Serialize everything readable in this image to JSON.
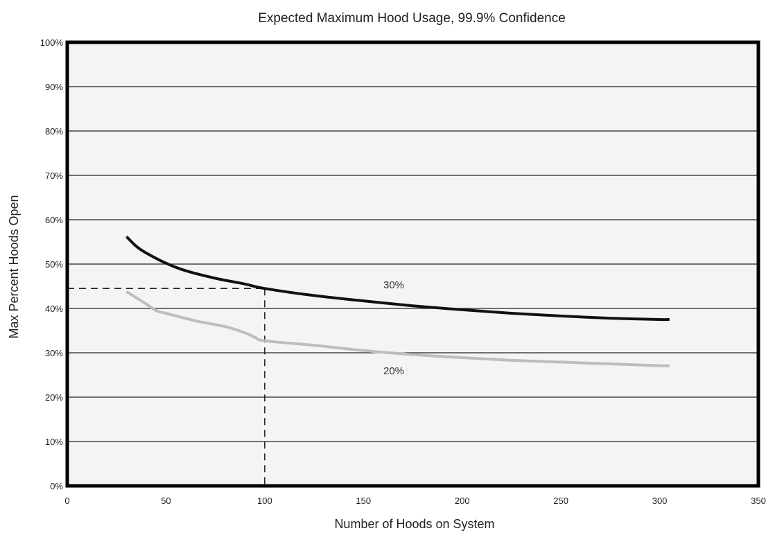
{
  "chart_data": {
    "type": "line",
    "title": "Expected Maximum Hood Usage, 99.9% Confidence",
    "xlabel": "Number of Hoods on System",
    "ylabel": "Max Percent Hoods Open",
    "xlim": [
      0,
      350
    ],
    "ylim": [
      0,
      100
    ],
    "x_ticks": [
      "0",
      "50",
      "100",
      "150",
      "200",
      "250",
      "300",
      "350"
    ],
    "y_ticks": [
      "0%",
      "10%",
      "20%",
      "30%",
      "40%",
      "50%",
      "60%",
      "70%",
      "80%",
      "90%",
      "100%"
    ],
    "grid": "horizontal",
    "series": [
      {
        "name": "30%",
        "color": "#111111",
        "x": [
          30,
          35,
          40,
          50,
          60,
          75,
          90,
          100,
          125,
          150,
          175,
          200,
          225,
          250,
          275,
          300,
          305
        ],
        "y": [
          56.2,
          54.0,
          52.5,
          50.2,
          48.5,
          46.8,
          45.5,
          44.5,
          42.9,
          41.7,
          40.6,
          39.7,
          38.9,
          38.3,
          37.8,
          37.5,
          37.5
        ]
      },
      {
        "name": "20%",
        "color": "#bdbdbd",
        "x": [
          30,
          40,
          45,
          50,
          65,
          80,
          90,
          95,
          100,
          125,
          150,
          175,
          200,
          225,
          250,
          275,
          300,
          305
        ],
        "y": [
          43.8,
          41.0,
          39.5,
          38.9,
          37.2,
          35.9,
          34.5,
          33.5,
          32.7,
          31.7,
          30.5,
          29.6,
          28.9,
          28.3,
          27.9,
          27.5,
          27.1,
          27.1
        ]
      }
    ],
    "reference_lines": [
      {
        "x": 100,
        "y": 44.5,
        "style": "dashed"
      }
    ],
    "background_color": "#f3f4f3",
    "grid_color": "#222222"
  }
}
